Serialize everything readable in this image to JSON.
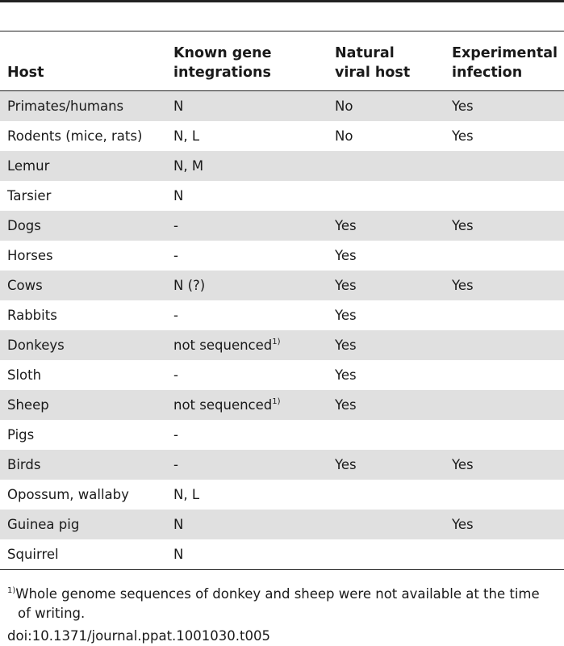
{
  "table": {
    "headers": [
      [
        "Host"
      ],
      [
        "Known gene",
        "integrations"
      ],
      [
        "Natural",
        "viral host"
      ],
      [
        "Experimental",
        "infection"
      ]
    ],
    "rows": [
      {
        "host": "Primates/humans",
        "genes": "N",
        "genes_note": "",
        "natural": "No",
        "experimental": "Yes"
      },
      {
        "host": "Rodents (mice, rats)",
        "genes": "N, L",
        "genes_note": "",
        "natural": "No",
        "experimental": "Yes"
      },
      {
        "host": "Lemur",
        "genes": "N, M",
        "genes_note": "",
        "natural": "",
        "experimental": ""
      },
      {
        "host": "Tarsier",
        "genes": "N",
        "genes_note": "",
        "natural": "",
        "experimental": ""
      },
      {
        "host": "Dogs",
        "genes": "-",
        "genes_note": "",
        "natural": "Yes",
        "experimental": "Yes"
      },
      {
        "host": "Horses",
        "genes": "-",
        "genes_note": "",
        "natural": "Yes",
        "experimental": ""
      },
      {
        "host": "Cows",
        "genes": "N (?)",
        "genes_note": "",
        "natural": "Yes",
        "experimental": "Yes"
      },
      {
        "host": "Rabbits",
        "genes": "-",
        "genes_note": "",
        "natural": "Yes",
        "experimental": ""
      },
      {
        "host": "Donkeys",
        "genes": "not sequenced",
        "genes_note": "1)",
        "natural": "Yes",
        "experimental": ""
      },
      {
        "host": "Sloth",
        "genes": "-",
        "genes_note": "",
        "natural": "Yes",
        "experimental": ""
      },
      {
        "host": "Sheep",
        "genes": "not sequenced",
        "genes_note": "1)",
        "natural": "Yes",
        "experimental": ""
      },
      {
        "host": "Pigs",
        "genes": "-",
        "genes_note": "",
        "natural": "",
        "experimental": ""
      },
      {
        "host": "Birds",
        "genes": "-",
        "genes_note": "",
        "natural": "Yes",
        "experimental": "Yes"
      },
      {
        "host": "Opossum, wallaby",
        "genes": "N, L",
        "genes_note": "",
        "natural": "",
        "experimental": ""
      },
      {
        "host": "Guinea pig",
        "genes": "N",
        "genes_note": "",
        "natural": "",
        "experimental": "Yes"
      },
      {
        "host": "Squirrel",
        "genes": "N",
        "genes_note": "",
        "natural": "",
        "experimental": ""
      }
    ]
  },
  "footnote": {
    "marker": "1)",
    "line1": "Whole genome sequences of donkey and sheep were not available at the time",
    "line2": "of writing."
  },
  "doi": "doi:10.1371/journal.ppat.1001030.t005",
  "colors": {
    "row_shade": "#e0e0e0",
    "rule": "#222222"
  }
}
